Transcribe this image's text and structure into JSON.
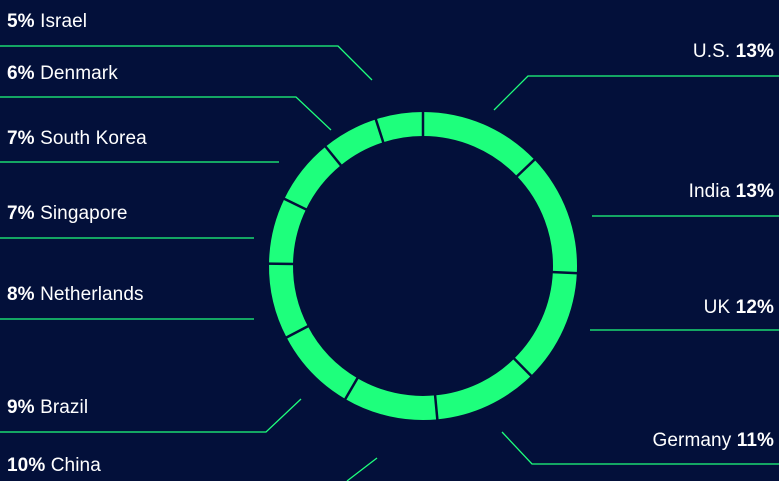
{
  "chart_data": {
    "type": "pie",
    "style": "donut",
    "colors": {
      "background": "#03103a",
      "ring": "#1eff7c",
      "divider": "#03103a",
      "leader": "#1eff7c",
      "text": "#ffffff"
    },
    "slices": [
      {
        "label": "U.S.",
        "value": 13,
        "pct_text": "13%"
      },
      {
        "label": "India",
        "value": 13,
        "pct_text": "13%"
      },
      {
        "label": "UK",
        "value": 12,
        "pct_text": "12%"
      },
      {
        "label": "Germany",
        "value": 11,
        "pct_text": "11%"
      },
      {
        "label": "China",
        "value": 10,
        "pct_text": "10%"
      },
      {
        "label": "Brazil",
        "value": 9,
        "pct_text": "9%"
      },
      {
        "label": "Netherlands",
        "value": 8,
        "pct_text": "8%"
      },
      {
        "label": "Singapore",
        "value": 7,
        "pct_text": "7%"
      },
      {
        "label": "South Korea",
        "value": 7,
        "pct_text": "7%"
      },
      {
        "label": "Denmark",
        "value": 6,
        "pct_text": "6%"
      },
      {
        "label": "Israel",
        "value": 5,
        "pct_text": "5%"
      }
    ]
  }
}
